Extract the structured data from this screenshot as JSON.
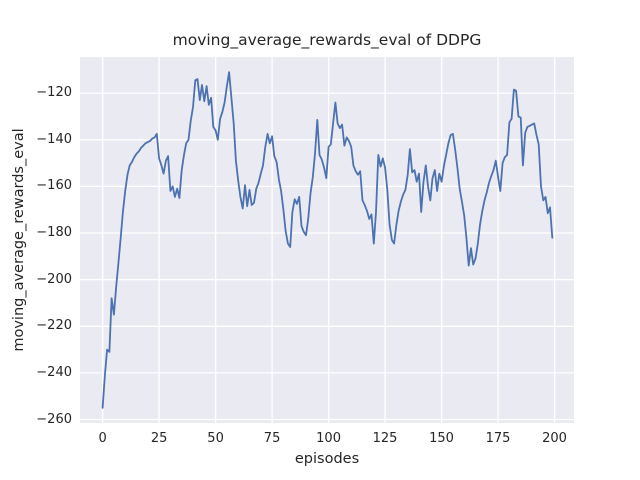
{
  "figure": {
    "title": "moving_average_rewards_eval of DDPG",
    "xlabel": "episodes",
    "ylabel": "moving_average_rewards_eval"
  },
  "chart_data": {
    "type": "line",
    "title": "moving_average_rewards_eval of DDPG",
    "xlabel": "episodes",
    "ylabel": "moving_average_rewards_eval",
    "grid": true,
    "legend": null,
    "xlim": [
      -10,
      208.6
    ],
    "ylim": [
      -261.5,
      -104.5
    ],
    "xticks": [
      0,
      25,
      50,
      75,
      100,
      125,
      150,
      175,
      200
    ],
    "xtick_labels": [
      "0",
      "25",
      "50",
      "75",
      "100",
      "125",
      "150",
      "175",
      "200"
    ],
    "yticks": [
      -120,
      -140,
      -160,
      -180,
      -200,
      -220,
      -240,
      -260
    ],
    "ytick_labels": [
      "−120",
      "−140",
      "−160",
      "−180",
      "−200",
      "−220",
      "−240",
      "−260"
    ],
    "style": {
      "fig_bg": "#ffffff",
      "axes_bg": "#eaeaf2",
      "grid_color": "#ffffff",
      "text_color": "#262626",
      "line_color": "#4c72b0"
    },
    "series": [
      {
        "name": "moving_average_rewards_eval",
        "color": "#4c72b0",
        "x_start": 0,
        "x_step": 1,
        "y": [
          -255,
          -241,
          -230,
          -231,
          -208,
          -215,
          -203,
          -193,
          -182,
          -171,
          -162,
          -155,
          -151,
          -149.5,
          -147.5,
          -146,
          -145,
          -143.5,
          -142.5,
          -141.5,
          -141,
          -140.5,
          -139.5,
          -139,
          -137.5,
          -148,
          -151,
          -154.5,
          -149,
          -147,
          -162,
          -160,
          -164.5,
          -161,
          -165,
          -153,
          -146.5,
          -141.5,
          -140,
          -132,
          -126,
          -114.5,
          -114,
          -123,
          -116.5,
          -123.5,
          -117,
          -125,
          -122,
          -134.5,
          -136,
          -140,
          -131,
          -128,
          -124,
          -117,
          -111,
          -122,
          -133,
          -149,
          -157.5,
          -164.5,
          -169.5,
          -159.5,
          -168.5,
          -161.5,
          -168,
          -167,
          -161,
          -158.5,
          -154.5,
          -151,
          -143,
          -137.5,
          -141.5,
          -138.5,
          -147,
          -149.5,
          -157,
          -162,
          -170,
          -179,
          -184.5,
          -186,
          -171,
          -165.5,
          -167.5,
          -164.5,
          -177,
          -179.5,
          -181,
          -174,
          -163,
          -156,
          -146,
          -131.5,
          -146.5,
          -148.5,
          -152,
          -156.5,
          -143,
          -142,
          -133,
          -124,
          -133,
          -135,
          -133.5,
          -142.5,
          -139,
          -140.5,
          -143,
          -151,
          -153.5,
          -155,
          -153.5,
          -166,
          -168,
          -170.5,
          -174,
          -172,
          -184.5,
          -171,
          -146.5,
          -151.5,
          -148,
          -152,
          -161.5,
          -176.5,
          -183,
          -184.5,
          -176.5,
          -170.5,
          -166.5,
          -163.5,
          -161.5,
          -155,
          -144,
          -154,
          -153,
          -158,
          -154.5,
          -171,
          -158,
          -151,
          -160,
          -166,
          -156.5,
          -153,
          -162,
          -154.5,
          -158,
          -151.5,
          -146.5,
          -141.5,
          -138,
          -137.5,
          -144,
          -152,
          -161,
          -166.5,
          -172.5,
          -182,
          -194,
          -186.5,
          -193.5,
          -191,
          -185,
          -176.5,
          -170.5,
          -166,
          -162.5,
          -158.5,
          -155.5,
          -153,
          -149,
          -156,
          -162,
          -150,
          -147.5,
          -146.5,
          -132.5,
          -131,
          -118.5,
          -119,
          -130,
          -130.5,
          -151,
          -137,
          -134.5,
          -134,
          -133.5,
          -133,
          -138,
          -142,
          -160,
          -166,
          -164.5,
          -171.5,
          -169,
          -182
        ]
      }
    ]
  }
}
